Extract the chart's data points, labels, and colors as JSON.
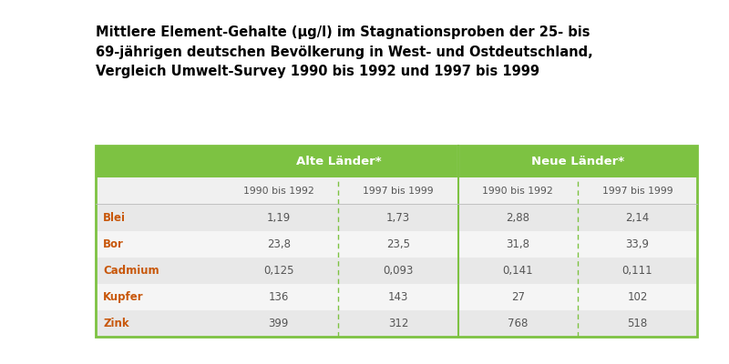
{
  "title_lines": [
    "Mittlere Element-Gehalte (μg/l) im Stagnationsproben der 25- bis",
    "69-jährigen deutschen Bevölkerung in West- und Ostdeutschland,",
    "Vergleich Umwelt-Survey 1990 bis 1992 und 1997 bis 1999"
  ],
  "col_groups": [
    "Alte Länder*",
    "Neue Länder*"
  ],
  "col_subheaders": [
    "1990 bis 1992",
    "1997 bis 1999",
    "1990 bis 1992",
    "1997 bis 1999"
  ],
  "row_labels": [
    "Blei",
    "Bor",
    "Cadmium",
    "Kupfer",
    "Zink"
  ],
  "data": [
    [
      "1,19",
      "1,73",
      "2,88",
      "2,14"
    ],
    [
      "23,8",
      "23,5",
      "31,8",
      "33,9"
    ],
    [
      "0,125",
      "0,093",
      "0,141",
      "0,111"
    ],
    [
      "136",
      "143",
      "27",
      "102"
    ],
    [
      "399",
      "312",
      "768",
      "518"
    ]
  ],
  "header_bg": "#7dc242",
  "header_text": "#ffffff",
  "row_bg_odd": "#e8e8e8",
  "row_bg_even": "#f5f5f5",
  "row_label_color": "#c8570a",
  "data_color": "#555555",
  "subheader_color": "#555555",
  "title_color": "#000000",
  "border_color": "#7dc242",
  "dashed_line_color": "#7dc242",
  "bg_color": "#ffffff",
  "fig_width": 8.0,
  "fig_height": 4.0,
  "dpi": 100
}
